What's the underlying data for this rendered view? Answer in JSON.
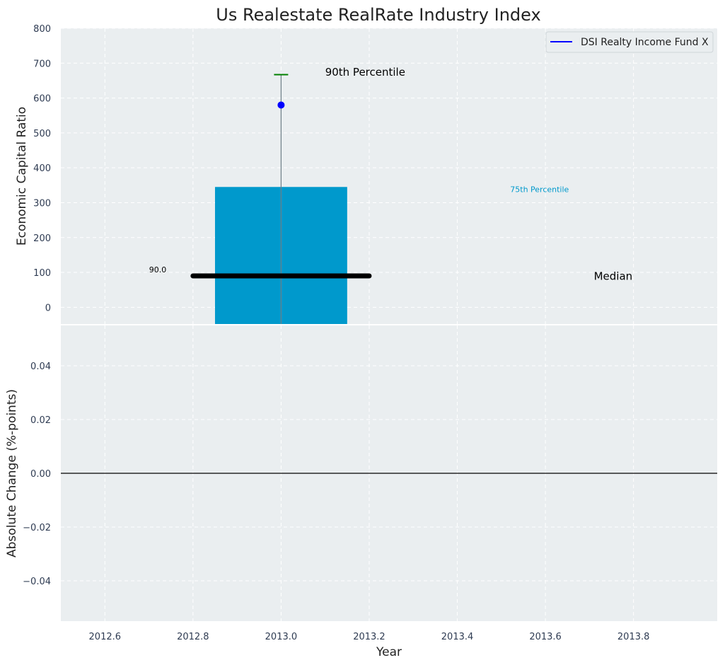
{
  "chart_data": [
    {
      "panel": "top",
      "type": "bar",
      "title": "Us Realestate RealRate Industry Index",
      "xlabel": "",
      "ylabel": "Economic Capital Ratio",
      "xlim": [
        2012.5,
        2013.99
      ],
      "ylim": [
        -48,
        800
      ],
      "yticks": [
        0,
        100,
        200,
        300,
        400,
        500,
        600,
        700,
        800
      ],
      "grid": true,
      "legend": {
        "placement": "top-right",
        "entries": [
          {
            "label": "DSI Realty Income Fund X",
            "color": "#0000ff"
          }
        ]
      },
      "bar": {
        "x": 2013.0,
        "width": 0.3,
        "bottom": -48,
        "top": 345,
        "color": "#0099cc"
      },
      "median": {
        "x_start": 2012.8,
        "x_end": 2013.2,
        "value": 90,
        "color": "#000000",
        "label": "90.0"
      },
      "whisker": {
        "x": 2013.0,
        "y_low": -48,
        "y_high": 667,
        "cap_color": "#008000"
      },
      "point": {
        "x": 2013.0,
        "y": 580,
        "color": "#0000ff"
      },
      "annotations": [
        {
          "text": "90th Percentile",
          "x": 2013.1,
          "y": 672,
          "color": "#000000"
        },
        {
          "text": "75th Percentile",
          "x": 2013.52,
          "y": 326,
          "color": "#0099cc"
        },
        {
          "text": "Median",
          "x": 2013.71,
          "y": 87,
          "color": "#000000"
        }
      ]
    },
    {
      "panel": "bottom",
      "type": "line",
      "xlabel": "Year",
      "ylabel": "Absolute Change (%-points)",
      "xlim": [
        2012.5,
        2013.99
      ],
      "ylim": [
        -0.055,
        0.055
      ],
      "xticks": [
        2012.6,
        2012.8,
        2013.0,
        2013.2,
        2013.4,
        2013.6,
        2013.8
      ],
      "xtick_labels": [
        "2012.6",
        "2012.8",
        "2013.0",
        "2013.2",
        "2013.4",
        "2013.6",
        "2013.8"
      ],
      "yticks": [
        -0.04,
        -0.02,
        0.0,
        0.02,
        0.04
      ],
      "ytick_labels": [
        "−0.04",
        "−0.02",
        "0.00",
        "0.02",
        "0.04"
      ],
      "grid": true,
      "reference_line": {
        "y": 0.0,
        "color": "#000000"
      }
    }
  ]
}
